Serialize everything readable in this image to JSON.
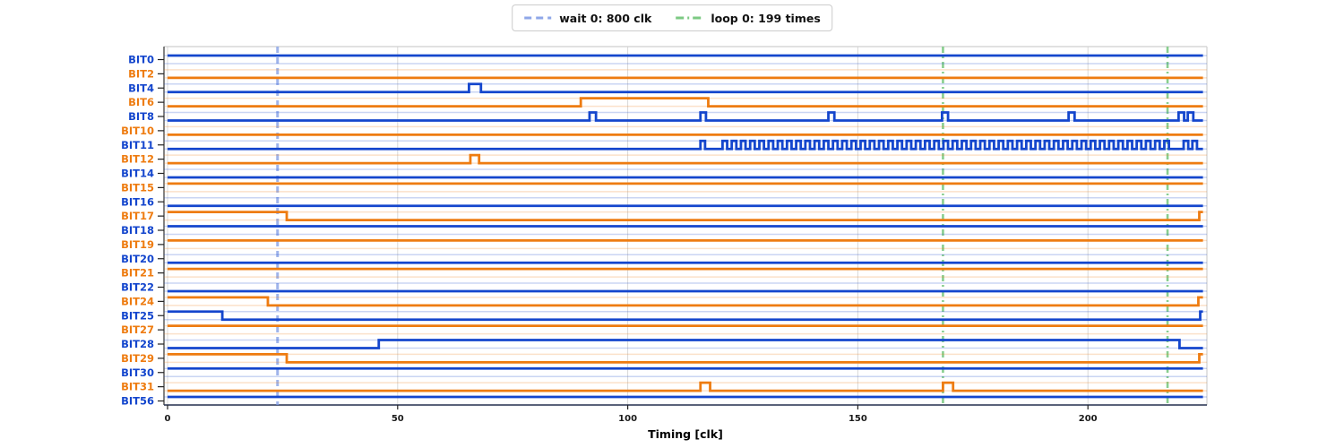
{
  "chart_data": {
    "type": "line",
    "subtype": "digital-timing-diagram",
    "title": "",
    "xlabel": "Timing [clk]",
    "xlim": [
      -1,
      226
    ],
    "x_ticks": [
      0,
      50,
      100,
      150,
      200
    ],
    "t_end": 225,
    "grid": "vertical-at-major-ticks",
    "legend_position": "top-center",
    "colors": {
      "blue": "#1446cd",
      "orange": "#ee7c11",
      "wait_marker": "#8fa7e8",
      "loop_marker": "#7cc983",
      "grid": "#d9d9d9",
      "spine_light": "#cfcfcf",
      "spine_dark": "#333333",
      "tick_text": "#1a1a1a"
    },
    "legend": {
      "items": [
        {
          "label": "wait 0: 800 clk",
          "color": "#8fa7e8",
          "style": "dashed"
        },
        {
          "label": "loop 0: 199 times",
          "color": "#7cc983",
          "style": "dashdot"
        }
      ]
    },
    "markers": {
      "wait": {
        "style": "dashed",
        "color": "#8fa7e8",
        "x": [
          23.9
        ]
      },
      "loop": {
        "style": "dashdot",
        "color": "#7cc983",
        "x": [
          168.5,
          217.3
        ]
      }
    },
    "signals": [
      {
        "label": "BIT0",
        "color": "blue",
        "base": 1,
        "pulses": [],
        "osc": []
      },
      {
        "label": "BIT2",
        "color": "orange",
        "base": 0,
        "pulses": [],
        "osc": []
      },
      {
        "label": "BIT4",
        "color": "blue",
        "base": 0,
        "pulses": [
          [
            65.5,
            68.1
          ]
        ],
        "osc": []
      },
      {
        "label": "BIT6",
        "color": "orange",
        "base": 0,
        "pulses": [
          [
            89.8,
            117.5
          ]
        ],
        "osc": []
      },
      {
        "label": "BIT8",
        "color": "blue",
        "base": 0,
        "pulses": [
          [
            91.7,
            93.1
          ],
          [
            115.8,
            117.0
          ],
          [
            143.6,
            144.9
          ],
          [
            168.3,
            169.6
          ],
          [
            195.8,
            197.1
          ],
          [
            219.7,
            220.9
          ],
          [
            221.7,
            222.9
          ]
        ],
        "osc": []
      },
      {
        "label": "BIT10",
        "color": "orange",
        "base": 0,
        "pulses": [],
        "osc": []
      },
      {
        "label": "BIT11",
        "color": "blue",
        "base": 0,
        "pulses": [
          [
            115.8,
            116.8
          ],
          [
            220.8,
            221.8
          ],
          [
            222.7,
            223.7
          ]
        ],
        "osc": [
          [
            120.6,
            217.6,
            2.0
          ]
        ]
      },
      {
        "label": "BIT12",
        "color": "orange",
        "base": 0,
        "pulses": [
          [
            65.8,
            67.7
          ]
        ],
        "osc": []
      },
      {
        "label": "BIT14",
        "color": "blue",
        "base": 0,
        "pulses": [],
        "osc": []
      },
      {
        "label": "BIT15",
        "color": "orange",
        "base": 1,
        "pulses": [],
        "osc": []
      },
      {
        "label": "BIT16",
        "color": "blue",
        "base": 0,
        "pulses": [],
        "osc": []
      },
      {
        "label": "BIT17",
        "color": "orange",
        "base": 1,
        "pulses": [
          [
            25.9,
            224.2
          ]
        ],
        "osc": []
      },
      {
        "label": "BIT18",
        "color": "blue",
        "base": 1,
        "pulses": [],
        "osc": []
      },
      {
        "label": "BIT19",
        "color": "orange",
        "base": 1,
        "pulses": [],
        "osc": []
      },
      {
        "label": "BIT20",
        "color": "blue",
        "base": 0,
        "pulses": [],
        "osc": []
      },
      {
        "label": "BIT21",
        "color": "orange",
        "base": 1,
        "pulses": [],
        "osc": []
      },
      {
        "label": "BIT22",
        "color": "blue",
        "base": 0,
        "pulses": [],
        "osc": []
      },
      {
        "label": "BIT24",
        "color": "orange",
        "base": 1,
        "pulses": [
          [
            21.8,
            224.0
          ]
        ],
        "osc": []
      },
      {
        "label": "BIT25",
        "color": "blue",
        "base": 1,
        "pulses": [
          [
            11.9,
            224.4
          ]
        ],
        "osc": []
      },
      {
        "label": "BIT27",
        "color": "orange",
        "base": 1,
        "pulses": [],
        "osc": []
      },
      {
        "label": "BIT28",
        "color": "blue",
        "base": 0,
        "pulses": [
          [
            45.9,
            219.9
          ]
        ],
        "osc": []
      },
      {
        "label": "BIT29",
        "color": "orange",
        "base": 1,
        "pulses": [
          [
            25.9,
            224.2
          ]
        ],
        "osc": []
      },
      {
        "label": "BIT30",
        "color": "blue",
        "base": 1,
        "pulses": [],
        "osc": []
      },
      {
        "label": "BIT31",
        "color": "orange",
        "base": 0,
        "pulses": [
          [
            115.8,
            117.9
          ],
          [
            168.5,
            170.7
          ]
        ],
        "osc": []
      },
      {
        "label": "BIT56",
        "color": "blue",
        "base": 1,
        "pulses": [],
        "osc": []
      }
    ]
  }
}
